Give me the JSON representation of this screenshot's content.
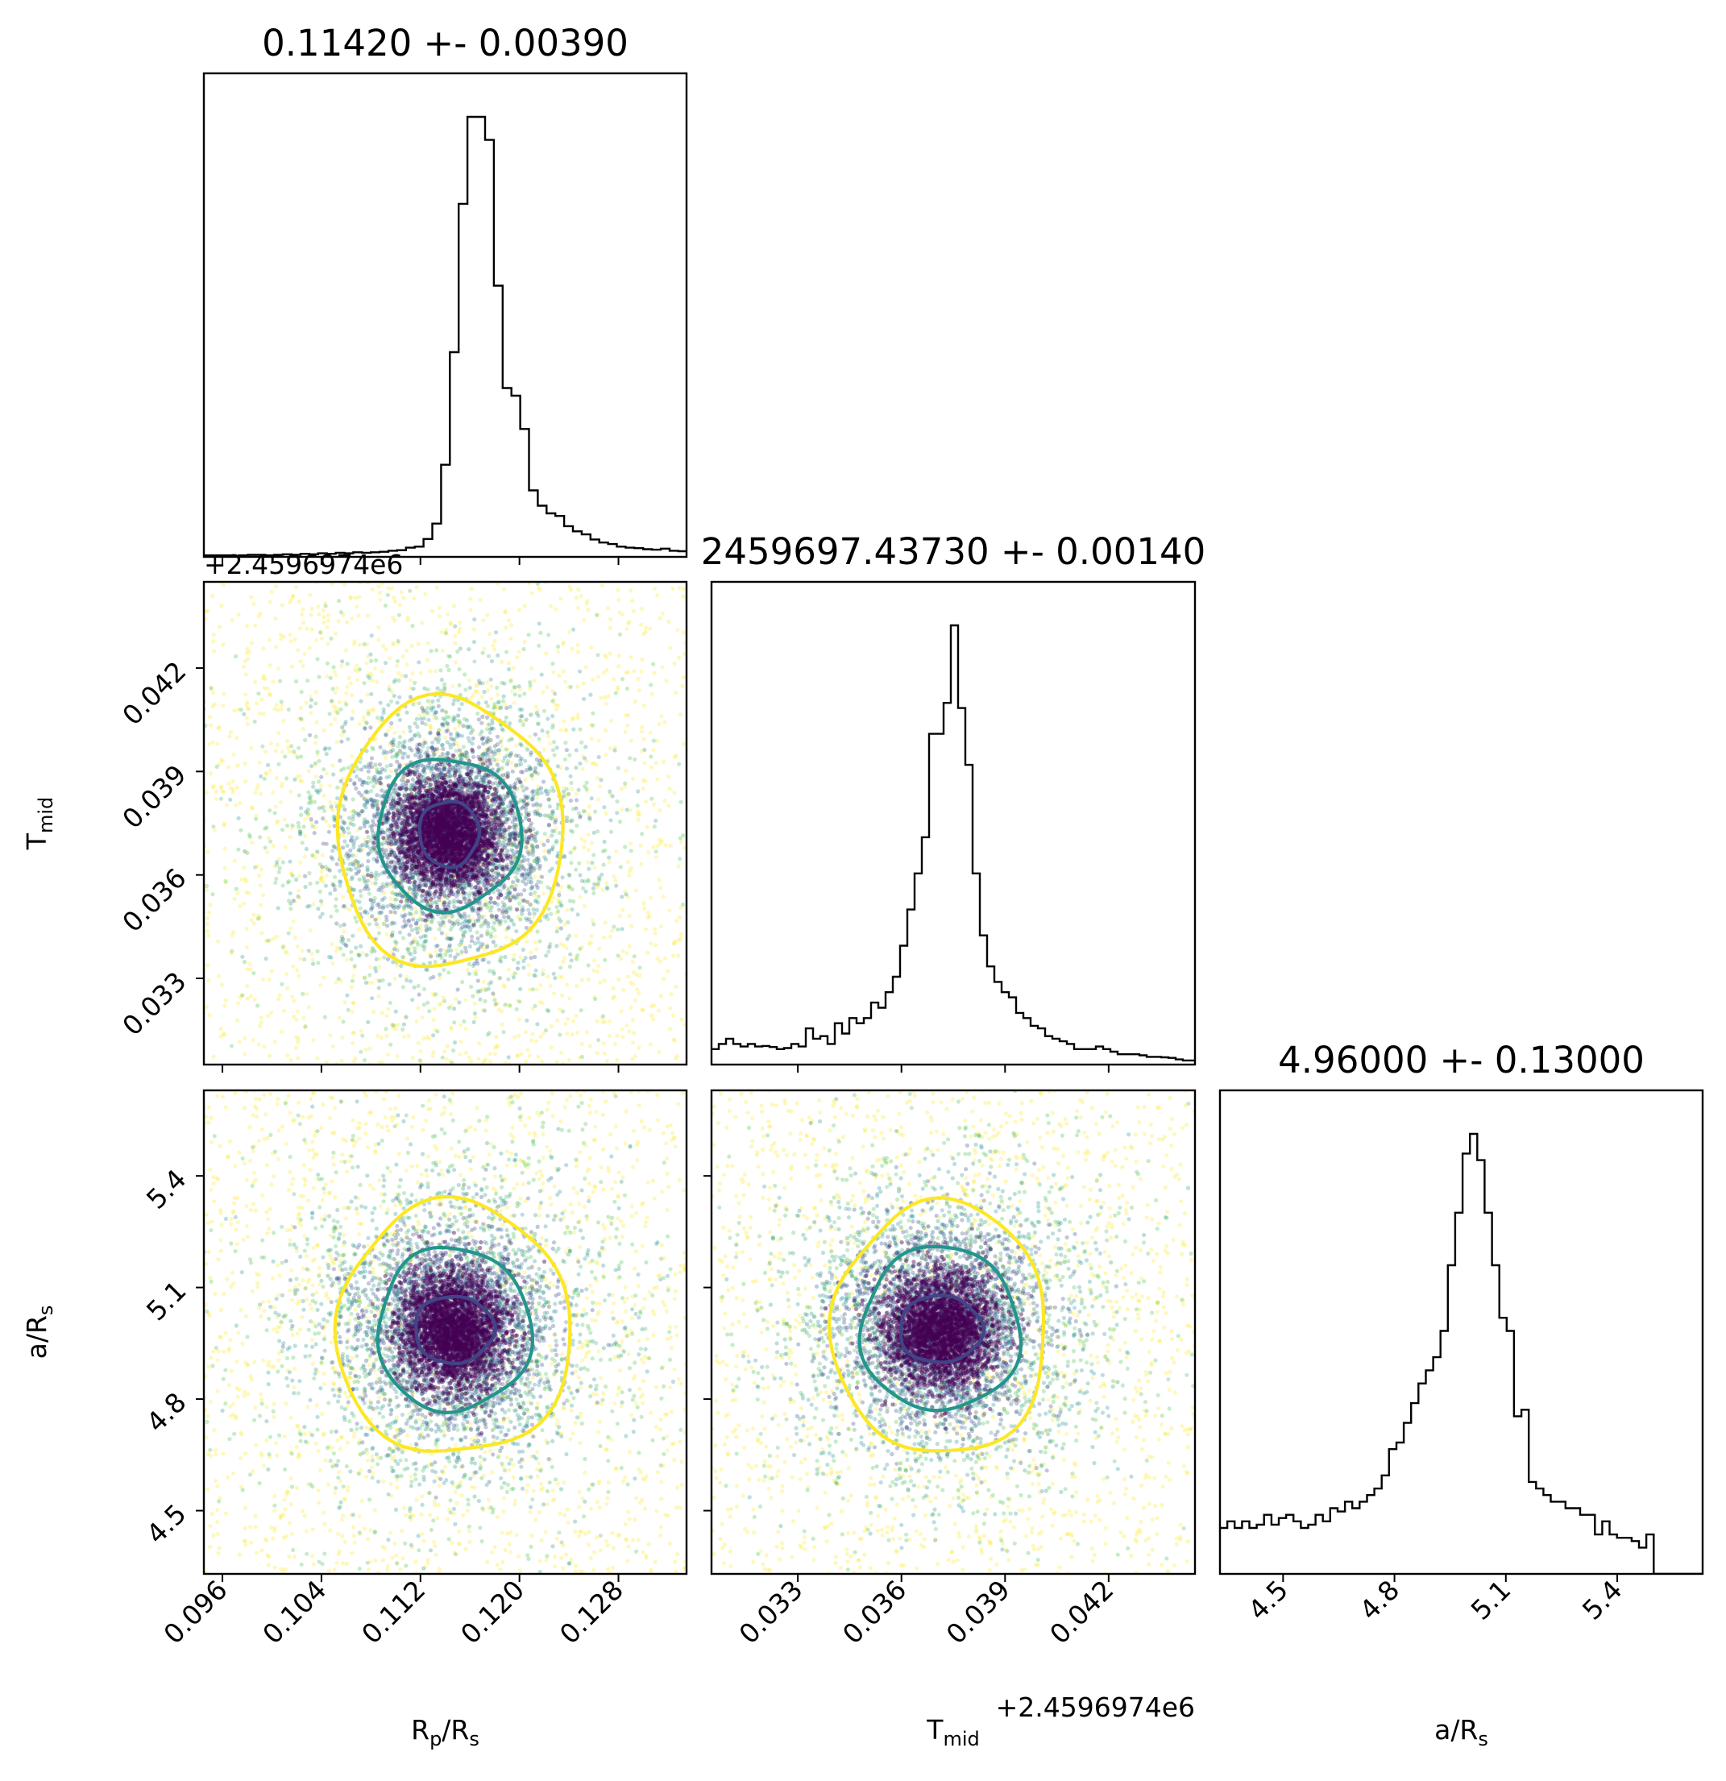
{
  "chart_data": {
    "type": "corner",
    "parameters": [
      {
        "key": "rp",
        "label": "R",
        "sub": "p",
        "label_suffix": "/R",
        "suffix_sub": "s",
        "range": [
          0.0945,
          0.1335
        ],
        "ticks": [
          "0.096",
          "0.104",
          "0.112",
          "0.120",
          "0.128"
        ]
      },
      {
        "key": "tmid",
        "label": "T",
        "sub": "mid",
        "label_suffix": "",
        "suffix_sub": "",
        "range": [
          0.0305,
          0.0445
        ],
        "ticks": [
          "0.033",
          "0.036",
          "0.039",
          "0.042"
        ],
        "offset": "+2.4596974e6"
      },
      {
        "key": "ars",
        "label": "a/R",
        "sub": "s",
        "label_suffix": "",
        "suffix_sub": "",
        "range": [
          4.33,
          5.63
        ],
        "ticks": [
          "4.5",
          "4.8",
          "5.1",
          "5.4"
        ]
      }
    ],
    "titles": [
      "0.11420 +- 0.00390",
      "2459697.43730 +- 0.00140",
      "4.96000 +- 0.13000"
    ],
    "histograms": [
      {
        "bin_start": 0.0945,
        "bin_width": 0.00071,
        "values": [
          3,
          3,
          3,
          2,
          3,
          4,
          4,
          3,
          4,
          5,
          4,
          6,
          5,
          7,
          6,
          8,
          7,
          9,
          8,
          9,
          10,
          12,
          13,
          18,
          20,
          35,
          65,
          180,
          400,
          690,
          860,
          860,
          815,
          530,
          330,
          315,
          250,
          130,
          100,
          85,
          80,
          60,
          50,
          44,
          34,
          28,
          25,
          20,
          18,
          17,
          15,
          14,
          16,
          12,
          11,
          10,
          10,
          9,
          8,
          7,
          6,
          5,
          5,
          4,
          3
        ]
      },
      {
        "bin_start": 0.0305,
        "bin_width": 0.00021,
        "values": [
          30,
          40,
          50,
          40,
          35,
          40,
          35,
          36,
          34,
          30,
          32,
          40,
          35,
          70,
          50,
          55,
          40,
          80,
          60,
          90,
          80,
          90,
          120,
          110,
          140,
          170,
          230,
          300,
          370,
          440,
          640,
          640,
          700,
          850,
          690,
          580,
          370,
          250,
          190,
          160,
          140,
          130,
          100,
          90,
          75,
          70,
          55,
          50,
          45,
          40,
          30,
          30,
          30,
          35,
          30,
          25,
          20,
          20,
          20,
          18,
          15,
          15,
          14,
          13,
          10,
          8,
          8
        ]
      },
      {
        "bin_start": 4.33,
        "bin_width": 0.0198,
        "values": [
          70,
          80,
          70,
          80,
          70,
          75,
          90,
          75,
          85,
          90,
          80,
          70,
          75,
          90,
          80,
          100,
          95,
          110,
          100,
          110,
          120,
          130,
          150,
          190,
          200,
          230,
          260,
          290,
          310,
          330,
          370,
          470,
          550,
          640,
          670,
          630,
          550,
          470,
          390,
          370,
          240,
          250,
          140,
          130,
          120,
          110,
          110,
          100,
          100,
          90,
          90,
          60,
          80,
          60,
          55,
          55,
          50,
          40,
          60,
          0,
          0,
          0,
          0,
          0,
          0,
          0
        ]
      }
    ],
    "pairs": [
      {
        "x": "rp",
        "y": "tmid",
        "center": [
          0.1143,
          0.0372
        ],
        "levels": [
          {
            "rx": 0.0024,
            "ry": 0.00095
          },
          {
            "rx": 0.0058,
            "ry": 0.0022
          },
          {
            "rx": 0.0091,
            "ry": 0.0039
          }
        ]
      },
      {
        "x": "rp",
        "y": "ars",
        "center": [
          0.1147,
          4.987
        ],
        "levels": [
          {
            "rx": 0.0032,
            "ry": 0.09
          },
          {
            "rx": 0.0062,
            "ry": 0.22
          },
          {
            "rx": 0.0095,
            "ry": 0.34
          }
        ]
      },
      {
        "x": "tmid",
        "y": "ars",
        "center": [
          0.03713,
          4.988
        ],
        "levels": [
          {
            "rx": 0.0012,
            "ry": 0.09
          },
          {
            "rx": 0.0023,
            "ry": 0.22
          },
          {
            "rx": 0.0031,
            "ry": 0.34
          }
        ]
      }
    ],
    "contour_colors": [
      "#414487",
      "#22968b",
      "#fde725"
    ],
    "point_colors": [
      "#440154",
      "#3b528b",
      "#21918c",
      "#5ec962",
      "#fde725"
    ]
  }
}
